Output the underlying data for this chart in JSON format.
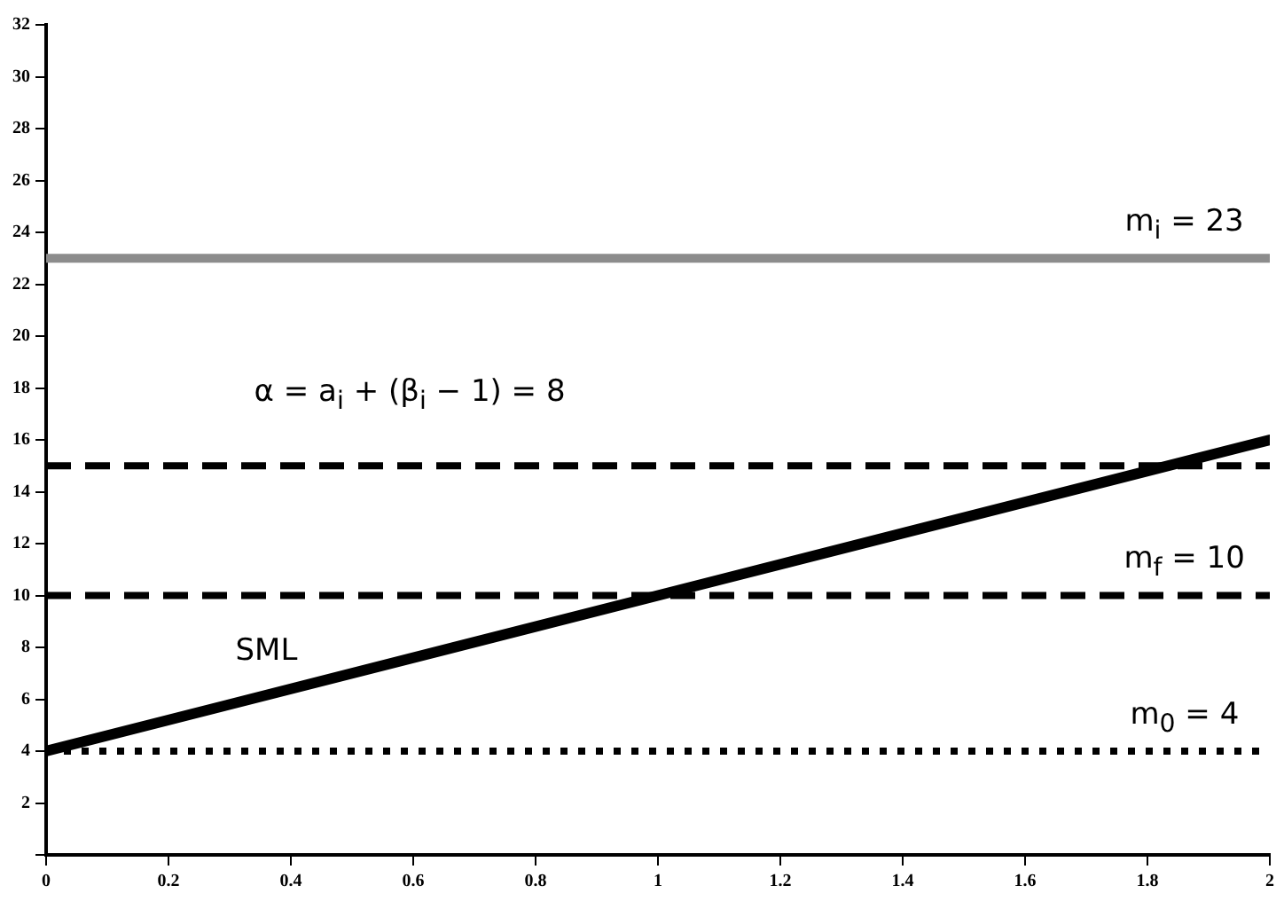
{
  "chart_data": {
    "type": "line",
    "x": [
      0,
      2
    ],
    "series": [
      {
        "name": "SML",
        "color": "#000000",
        "values": [
          4,
          16
        ]
      }
    ],
    "xlim": [
      0,
      2
    ],
    "xticks": [
      0,
      0.2,
      0.4,
      0.6,
      0.8,
      1,
      1.2,
      1.4,
      1.6,
      1.8,
      2
    ],
    "ylim": [
      0,
      32
    ],
    "yticks": [
      {
        "value": 0,
        "label": null
      },
      2,
      4,
      6,
      8,
      10,
      12,
      14,
      16,
      18,
      20,
      22,
      24,
      26,
      28,
      30,
      32
    ],
    "ref_lines": [
      {
        "axis": "y",
        "value": 23,
        "label": "m$_{i}$ = 23",
        "color": "#8c8c8c",
        "line_style": "solid"
      },
      {
        "axis": "y",
        "value": 15,
        "color": "#000000",
        "line_style": "dashed"
      },
      {
        "axis": "y",
        "value": 10,
        "label": "m$_{f}$ = 10",
        "color": "#000000",
        "line_style": "dashed"
      },
      {
        "axis": "y",
        "value": 4,
        "label": "m$_{0}$ = 4",
        "color": "#000000",
        "line_style": "dotted"
      }
    ],
    "annotations": [
      "α = a$_{i}$ + (β$_{i}$ − 1) = 8"
    ],
    "grid": false,
    "legend": false,
    "marker": "none",
    "line_style": "solid"
  }
}
